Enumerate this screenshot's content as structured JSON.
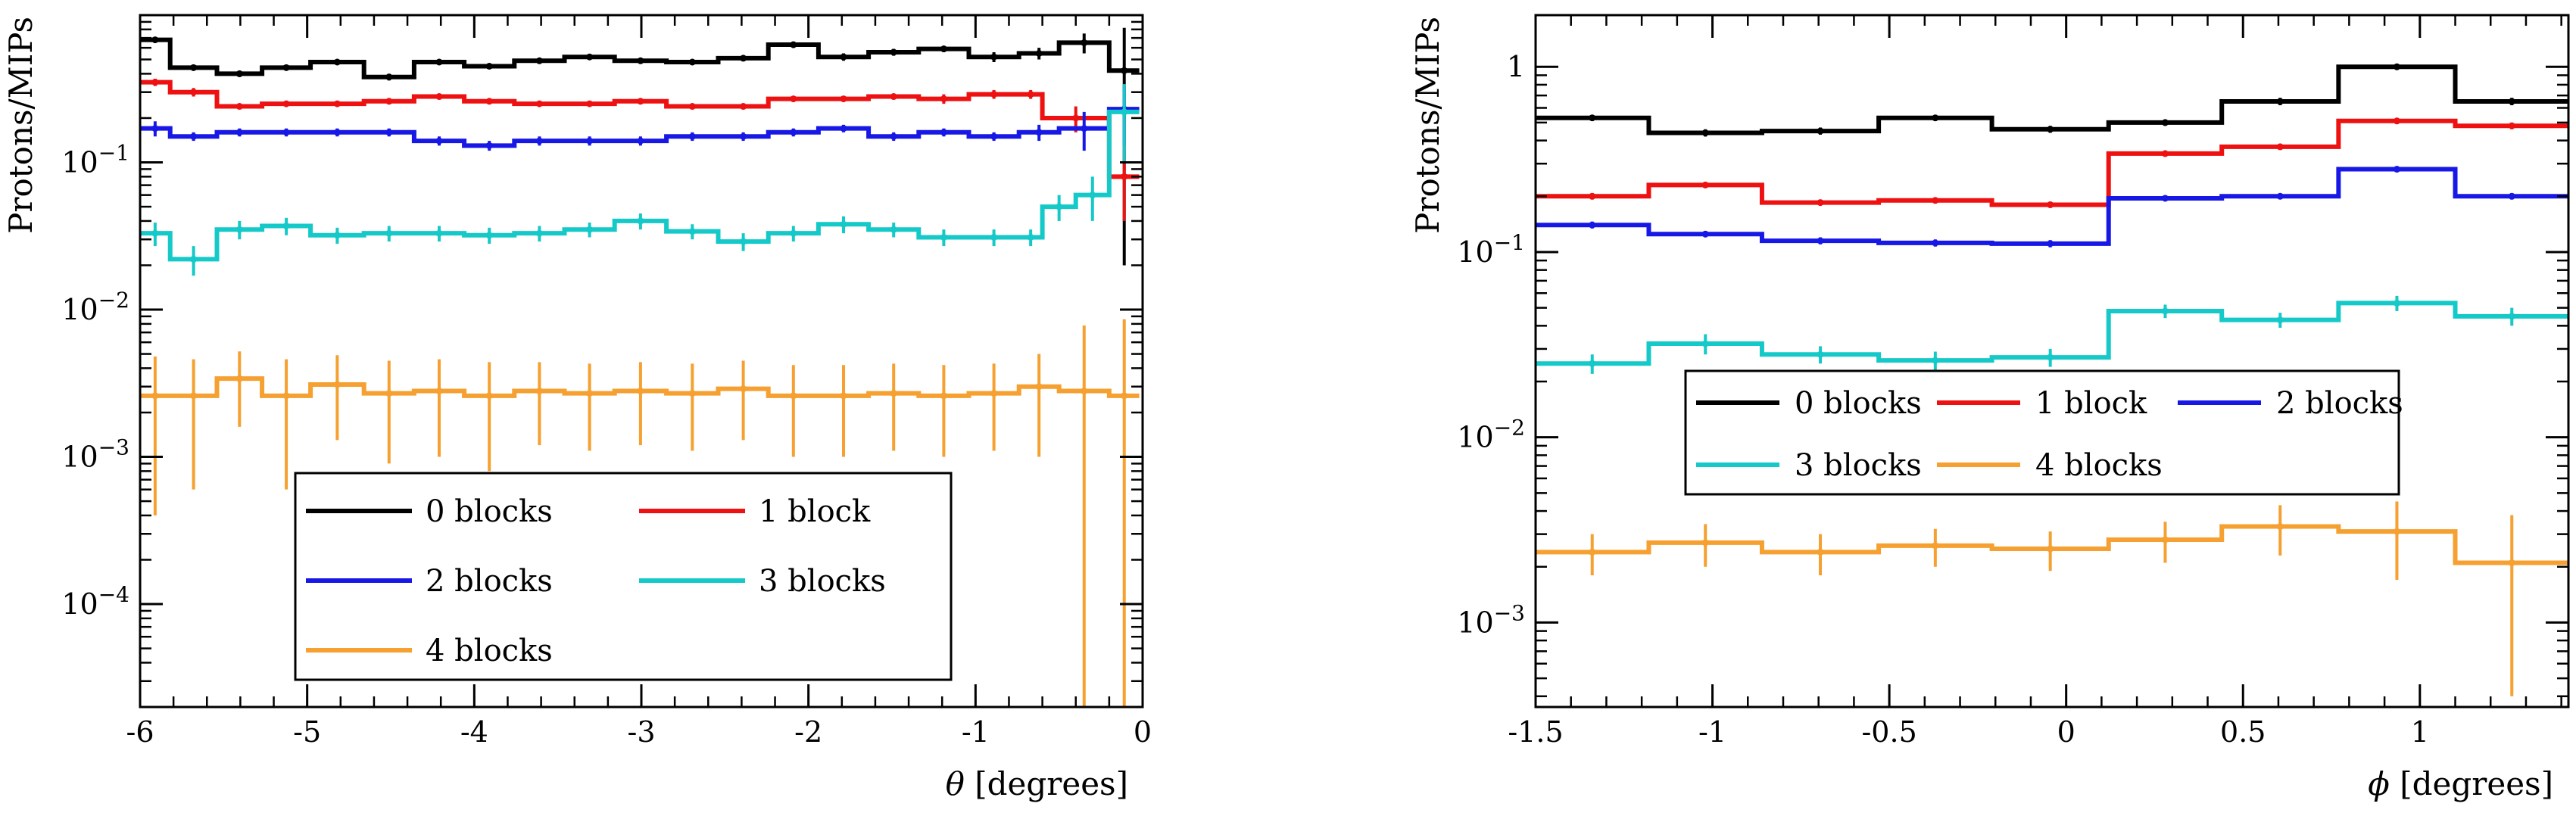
{
  "colors": {
    "s0": "#000000",
    "s1": "#ee1111",
    "s2": "#1818e6",
    "s3": "#16c9c9",
    "s4": "#f5a030"
  },
  "chart_data": [
    {
      "type": "step",
      "title": "",
      "xlabel_symbol": "θ",
      "xlabel_unit": "[degrees]",
      "ylabel": "Protons/MIPs",
      "xlim": [
        -6,
        0
      ],
      "ylim": [
        2e-05,
        1
      ],
      "yscale": "log",
      "xticks": [
        -6,
        -5,
        -4,
        -3,
        -2,
        -1,
        0
      ],
      "xtick_labels": [
        "-6",
        "-5",
        "-4",
        "-3",
        "-2",
        "-1",
        "0"
      ],
      "yticks": [
        0.1,
        0.01,
        0.001,
        0.0001
      ],
      "ytick_labels": [
        {
          "base": "10",
          "exp": "−1"
        },
        {
          "base": "10",
          "exp": "−2"
        },
        {
          "base": "10",
          "exp": "−3"
        },
        {
          "base": "10",
          "exp": "−4"
        }
      ],
      "legend": {
        "placement": "lower-center",
        "columns": 2
      },
      "series": [
        {
          "name": "0 blocks",
          "color_key": "s0",
          "bins": [
            [
              -6.0,
              -5.82,
              0.68
            ],
            [
              -5.82,
              -5.54,
              0.44
            ],
            [
              -5.54,
              -5.27,
              0.4
            ],
            [
              -5.27,
              -4.98,
              0.44
            ],
            [
              -4.98,
              -4.66,
              0.48
            ],
            [
              -4.66,
              -4.36,
              0.38
            ],
            [
              -4.36,
              -4.06,
              0.48
            ],
            [
              -4.06,
              -3.76,
              0.45
            ],
            [
              -3.76,
              -3.46,
              0.49
            ],
            [
              -3.46,
              -3.16,
              0.52
            ],
            [
              -3.16,
              -2.85,
              0.49
            ],
            [
              -2.85,
              -2.54,
              0.48
            ],
            [
              -2.54,
              -2.24,
              0.51
            ],
            [
              -2.24,
              -1.94,
              0.63
            ],
            [
              -1.94,
              -1.64,
              0.52
            ],
            [
              -1.64,
              -1.34,
              0.56
            ],
            [
              -1.34,
              -1.04,
              0.59
            ],
            [
              -1.04,
              -0.74,
              0.52
            ],
            [
              -0.74,
              -0.5,
              0.55
            ],
            [
              -0.5,
              -0.2,
              0.65
            ],
            [
              -0.2,
              -0.02,
              0.42
            ]
          ],
          "errors": [
            0.02,
            0.02,
            0.02,
            0.02,
            0.02,
            0.02,
            0.02,
            0.02,
            0.02,
            0.02,
            0.02,
            0.02,
            0.02,
            0.03,
            0.03,
            0.03,
            0.03,
            0.04,
            0.05,
            0.1,
            0.4
          ]
        },
        {
          "name": "1 block",
          "color_key": "s1",
          "bins": [
            [
              -6.0,
              -5.82,
              0.35
            ],
            [
              -5.82,
              -5.54,
              0.3
            ],
            [
              -5.54,
              -5.27,
              0.24
            ],
            [
              -5.27,
              -4.98,
              0.25
            ],
            [
              -4.98,
              -4.66,
              0.25
            ],
            [
              -4.66,
              -4.36,
              0.26
            ],
            [
              -4.36,
              -4.06,
              0.28
            ],
            [
              -4.06,
              -3.76,
              0.26
            ],
            [
              -3.76,
              -3.46,
              0.25
            ],
            [
              -3.46,
              -3.16,
              0.25
            ],
            [
              -3.16,
              -2.85,
              0.26
            ],
            [
              -2.85,
              -2.54,
              0.24
            ],
            [
              -2.54,
              -2.24,
              0.24
            ],
            [
              -2.24,
              -1.94,
              0.27
            ],
            [
              -1.94,
              -1.64,
              0.27
            ],
            [
              -1.64,
              -1.34,
              0.28
            ],
            [
              -1.34,
              -1.04,
              0.27
            ],
            [
              -1.04,
              -0.74,
              0.29
            ],
            [
              -0.74,
              -0.6,
              0.29
            ],
            [
              -0.6,
              -0.2,
              0.2
            ],
            [
              -0.2,
              -0.02,
              0.08
            ]
          ],
          "errors": [
            0.02,
            0.02,
            0.01,
            0.01,
            0.01,
            0.01,
            0.01,
            0.01,
            0.01,
            0.01,
            0.01,
            0.01,
            0.01,
            0.01,
            0.01,
            0.01,
            0.02,
            0.02,
            0.02,
            0.04,
            0.04
          ]
        },
        {
          "name": "2 blocks",
          "color_key": "s2",
          "bins": [
            [
              -6.0,
              -5.82,
              0.17
            ],
            [
              -5.82,
              -5.54,
              0.15
            ],
            [
              -5.54,
              -5.27,
              0.16
            ],
            [
              -5.27,
              -4.98,
              0.16
            ],
            [
              -4.98,
              -4.66,
              0.16
            ],
            [
              -4.66,
              -4.36,
              0.16
            ],
            [
              -4.36,
              -4.06,
              0.14
            ],
            [
              -4.06,
              -3.76,
              0.13
            ],
            [
              -3.76,
              -3.46,
              0.14
            ],
            [
              -3.46,
              -3.16,
              0.14
            ],
            [
              -3.16,
              -2.85,
              0.14
            ],
            [
              -2.85,
              -2.54,
              0.15
            ],
            [
              -2.54,
              -2.24,
              0.15
            ],
            [
              -2.24,
              -1.94,
              0.16
            ],
            [
              -1.94,
              -1.64,
              0.17
            ],
            [
              -1.64,
              -1.34,
              0.15
            ],
            [
              -1.34,
              -1.04,
              0.16
            ],
            [
              -1.04,
              -0.74,
              0.15
            ],
            [
              -0.74,
              -0.5,
              0.16
            ],
            [
              -0.5,
              -0.2,
              0.17
            ],
            [
              -0.2,
              -0.02,
              0.23
            ]
          ],
          "errors": [
            0.02,
            0.01,
            0.01,
            0.01,
            0.01,
            0.01,
            0.01,
            0.01,
            0.01,
            0.01,
            0.01,
            0.01,
            0.01,
            0.01,
            0.01,
            0.01,
            0.01,
            0.01,
            0.02,
            0.05,
            0.1
          ]
        },
        {
          "name": "3 blocks",
          "color_key": "s3",
          "bins": [
            [
              -6.0,
              -5.82,
              0.033
            ],
            [
              -5.82,
              -5.54,
              0.022
            ],
            [
              -5.54,
              -5.27,
              0.035
            ],
            [
              -5.27,
              -4.98,
              0.037
            ],
            [
              -4.98,
              -4.66,
              0.032
            ],
            [
              -4.66,
              -4.36,
              0.033
            ],
            [
              -4.36,
              -4.06,
              0.033
            ],
            [
              -4.06,
              -3.76,
              0.032
            ],
            [
              -3.76,
              -3.46,
              0.033
            ],
            [
              -3.46,
              -3.16,
              0.035
            ],
            [
              -3.16,
              -2.85,
              0.04
            ],
            [
              -2.85,
              -2.54,
              0.034
            ],
            [
              -2.54,
              -2.24,
              0.029
            ],
            [
              -2.24,
              -1.94,
              0.033
            ],
            [
              -1.94,
              -1.64,
              0.038
            ],
            [
              -1.64,
              -1.34,
              0.035
            ],
            [
              -1.34,
              -1.04,
              0.031
            ],
            [
              -1.04,
              -0.74,
              0.031
            ],
            [
              -0.74,
              -0.6,
              0.031
            ],
            [
              -0.6,
              -0.4,
              0.05
            ],
            [
              -0.4,
              -0.2,
              0.06
            ],
            [
              -0.2,
              -0.02,
              0.22
            ]
          ],
          "errors": [
            0.006,
            0.005,
            0.005,
            0.005,
            0.004,
            0.004,
            0.004,
            0.004,
            0.004,
            0.004,
            0.005,
            0.004,
            0.004,
            0.004,
            0.005,
            0.004,
            0.004,
            0.004,
            0.004,
            0.01,
            0.02,
            0.12
          ]
        },
        {
          "name": "4 blocks",
          "color_key": "s4",
          "bins": [
            [
              -6.0,
              -5.82,
              0.0026
            ],
            [
              -5.82,
              -5.54,
              0.0026
            ],
            [
              -5.54,
              -5.27,
              0.0034
            ],
            [
              -5.27,
              -4.98,
              0.0026
            ],
            [
              -4.98,
              -4.66,
              0.0031
            ],
            [
              -4.66,
              -4.36,
              0.0027
            ],
            [
              -4.36,
              -4.06,
              0.0028
            ],
            [
              -4.06,
              -3.76,
              0.0026
            ],
            [
              -3.76,
              -3.46,
              0.0028
            ],
            [
              -3.46,
              -3.16,
              0.0027
            ],
            [
              -3.16,
              -2.85,
              0.0028
            ],
            [
              -2.85,
              -2.54,
              0.0027
            ],
            [
              -2.54,
              -2.24,
              0.0029
            ],
            [
              -2.24,
              -1.94,
              0.0026
            ],
            [
              -1.94,
              -1.64,
              0.0026
            ],
            [
              -1.64,
              -1.34,
              0.0027
            ],
            [
              -1.34,
              -1.04,
              0.0026
            ],
            [
              -1.04,
              -0.74,
              0.0027
            ],
            [
              -0.74,
              -0.5,
              0.003
            ],
            [
              -0.5,
              -0.2,
              0.0028
            ],
            [
              -0.2,
              -0.02,
              0.0026
            ]
          ],
          "errors": [
            0.0022,
            0.002,
            0.0018,
            0.002,
            0.0018,
            0.0018,
            0.0018,
            0.0018,
            0.0016,
            0.0016,
            0.0016,
            0.0016,
            0.0016,
            0.0016,
            0.0016,
            0.0016,
            0.0016,
            0.0016,
            0.002,
            0.005,
            0.006
          ]
        }
      ]
    },
    {
      "type": "step",
      "title": "",
      "xlabel_symbol": "ϕ",
      "xlabel_unit": "[degrees]",
      "ylabel": "Protons/MIPs",
      "xlim": [
        -1.5,
        1.42
      ],
      "ylim": [
        0.00035,
        1.9
      ],
      "yscale": "log",
      "xticks": [
        -1.5,
        -1,
        -0.5,
        0,
        0.5,
        1
      ],
      "xtick_labels": [
        "-1.5",
        "-1",
        "-0.5",
        "0",
        "0.5",
        "1"
      ],
      "yticks": [
        1,
        0.1,
        0.01,
        0.001
      ],
      "ytick_labels": [
        {
          "base": "1",
          "exp": ""
        },
        {
          "base": "10",
          "exp": "−1"
        },
        {
          "base": "10",
          "exp": "−2"
        },
        {
          "base": "10",
          "exp": "−3"
        }
      ],
      "legend": {
        "placement": "center",
        "columns": 3
      },
      "series": [
        {
          "name": "0 blocks",
          "color_key": "s0",
          "bins": [
            [
              -1.5,
              -1.18,
              0.53
            ],
            [
              -1.18,
              -0.86,
              0.44
            ],
            [
              -0.86,
              -0.53,
              0.45
            ],
            [
              -0.53,
              -0.21,
              0.53
            ],
            [
              -0.21,
              0.12,
              0.46
            ],
            [
              0.12,
              0.44,
              0.5
            ],
            [
              0.44,
              0.77,
              0.65
            ],
            [
              0.77,
              1.1,
              1.0
            ],
            [
              1.1,
              1.42,
              0.65
            ]
          ],
          "errors": [
            0.02,
            0.02,
            0.02,
            0.02,
            0.02,
            0.02,
            0.03,
            0.04,
            0.03
          ]
        },
        {
          "name": "1 block",
          "color_key": "s1",
          "bins": [
            [
              -1.5,
              -1.18,
              0.2
            ],
            [
              -1.18,
              -0.86,
              0.23
            ],
            [
              -0.86,
              -0.53,
              0.185
            ],
            [
              -0.53,
              -0.21,
              0.19
            ],
            [
              -0.21,
              0.12,
              0.18
            ],
            [
              0.12,
              0.44,
              0.34
            ],
            [
              0.44,
              0.77,
              0.37
            ],
            [
              0.77,
              1.1,
              0.51
            ],
            [
              1.1,
              1.42,
              0.48
            ]
          ],
          "errors": [
            0.008,
            0.008,
            0.007,
            0.007,
            0.007,
            0.01,
            0.01,
            0.02,
            0.02
          ]
        },
        {
          "name": "2 blocks",
          "color_key": "s2",
          "bins": [
            [
              -1.5,
              -1.18,
              0.14
            ],
            [
              -1.18,
              -0.86,
              0.125
            ],
            [
              -0.86,
              -0.53,
              0.115
            ],
            [
              -0.53,
              -0.21,
              0.112
            ],
            [
              -0.21,
              0.12,
              0.111
            ],
            [
              0.12,
              0.44,
              0.195
            ],
            [
              0.44,
              0.77,
              0.2
            ],
            [
              0.77,
              1.1,
              0.28
            ],
            [
              1.1,
              1.42,
              0.2
            ]
          ],
          "errors": [
            0.006,
            0.005,
            0.005,
            0.005,
            0.005,
            0.007,
            0.007,
            0.01,
            0.008
          ]
        },
        {
          "name": "3 blocks",
          "color_key": "s3",
          "bins": [
            [
              -1.5,
              -1.18,
              0.025
            ],
            [
              -1.18,
              -0.86,
              0.032
            ],
            [
              -0.86,
              -0.53,
              0.028
            ],
            [
              -0.53,
              -0.21,
              0.026
            ],
            [
              -0.21,
              0.12,
              0.027
            ],
            [
              0.12,
              0.44,
              0.048
            ],
            [
              0.44,
              0.77,
              0.043
            ],
            [
              0.77,
              1.1,
              0.053
            ],
            [
              1.1,
              1.42,
              0.045
            ]
          ],
          "errors": [
            0.003,
            0.004,
            0.003,
            0.003,
            0.003,
            0.004,
            0.004,
            0.005,
            0.005
          ]
        },
        {
          "name": "4 blocks",
          "color_key": "s4",
          "bins": [
            [
              -1.5,
              -1.18,
              0.0024
            ],
            [
              -1.18,
              -0.86,
              0.0027
            ],
            [
              -0.86,
              -0.53,
              0.0024
            ],
            [
              -0.53,
              -0.21,
              0.0026
            ],
            [
              -0.21,
              0.12,
              0.0025
            ],
            [
              0.12,
              0.44,
              0.0028
            ],
            [
              0.44,
              0.77,
              0.0033
            ],
            [
              0.77,
              1.1,
              0.0031
            ],
            [
              1.1,
              1.42,
              0.0021
            ]
          ],
          "errors": [
            0.0006,
            0.0007,
            0.0006,
            0.0006,
            0.0006,
            0.0007,
            0.001,
            0.0014,
            0.0017
          ]
        }
      ]
    }
  ]
}
